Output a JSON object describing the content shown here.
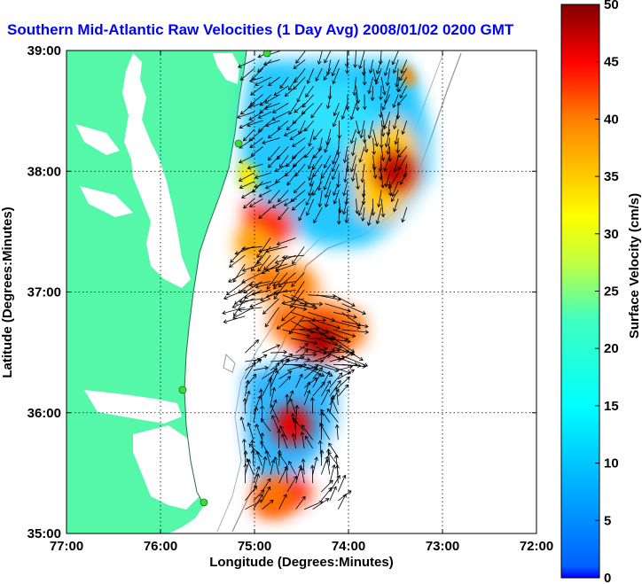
{
  "chart_data": {
    "type": "heatmap",
    "title": "Southern Mid-Atlantic Raw Velocities (1 Day Avg) 2008/01/02 0200 GMT",
    "xlabel": "Longitude (Degrees:Minutes)",
    "ylabel": "Latitude (Degrees:Minutes)",
    "colorbar_label": "Surface Velocity (cm/s)",
    "xlim": [
      -77,
      -72
    ],
    "ylim": [
      35,
      39
    ],
    "x_ticks": [
      -77,
      -76,
      -75,
      -74,
      -73,
      -72
    ],
    "x_tick_labels": [
      "77:00",
      "76:00",
      "75:00",
      "74:00",
      "73:00",
      "72:00"
    ],
    "y_ticks": [
      35,
      36,
      37,
      38,
      39
    ],
    "y_tick_labels": [
      "35:00",
      "36:00",
      "37:00",
      "38:00",
      "39:00"
    ],
    "clim": [
      0,
      50
    ],
    "colorbar_ticks": [
      0,
      5,
      10,
      15,
      20,
      25,
      30,
      35,
      40,
      45,
      50
    ],
    "colorbar_tick_labels": [
      "0",
      "5",
      "10",
      "15",
      "20",
      "25",
      "30",
      "35",
      "40",
      "45",
      "50"
    ],
    "grid": "dotted",
    "colormap": "jet",
    "land_color": "#55f7a8",
    "regions": [
      {
        "lon": [
          -75.0,
          -73.3
        ],
        "lat": [
          37.7,
          39.0
        ],
        "speed": 14
      },
      {
        "lon": [
          -75.1,
          -74.4
        ],
        "lat": [
          36.8,
          37.5
        ],
        "speed": 32
      },
      {
        "lon": [
          -74.7,
          -74.0
        ],
        "lat": [
          36.4,
          37.0
        ],
        "speed": 44
      },
      {
        "lon": [
          -75.1,
          -74.1
        ],
        "lat": [
          35.2,
          36.5
        ],
        "speed": 18
      }
    ],
    "hotspots": [
      {
        "lon": -73.5,
        "lat": 38.0,
        "speed": 47
      },
      {
        "lon": -74.3,
        "lat": 36.6,
        "speed": 48
      },
      {
        "lon": -74.6,
        "lat": 35.9,
        "speed": 45
      },
      {
        "lon": -75.0,
        "lat": 37.4,
        "speed": 36
      },
      {
        "lon": -74.8,
        "lat": 35.3,
        "speed": 38
      }
    ]
  }
}
